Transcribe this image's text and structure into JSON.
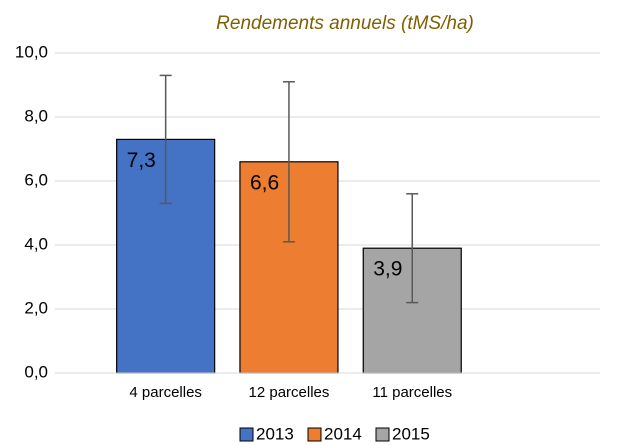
{
  "chart_data": {
    "type": "bar",
    "title": "Rendements annuels (tMS/ha)",
    "categories": [
      "4 parcelles",
      "12 parcelles",
      "11 parcelles"
    ],
    "series": [
      {
        "name": "2013",
        "color": "#4472c4",
        "values": [
          7.3,
          null,
          null
        ],
        "errors": [
          2.0,
          null,
          null
        ],
        "value_labels": [
          "7,3",
          null,
          null
        ]
      },
      {
        "name": "2014",
        "color": "#ed7d31",
        "values": [
          null,
          6.6,
          null
        ],
        "errors": [
          null,
          2.5,
          null
        ],
        "value_labels": [
          null,
          "6,6",
          null
        ]
      },
      {
        "name": "2015",
        "color": "#a5a5a5",
        "values": [
          null,
          null,
          3.9
        ],
        "errors": [
          null,
          null,
          1.7
        ],
        "value_labels": [
          null,
          null,
          "3,9"
        ]
      }
    ],
    "ylim": [
      0,
      10
    ],
    "yticks": [
      {
        "value": 0,
        "label": "0,0"
      },
      {
        "value": 2,
        "label": "2,0"
      },
      {
        "value": 4,
        "label": "4,0"
      },
      {
        "value": 6,
        "label": "6,0"
      },
      {
        "value": 8,
        "label": "8,0"
      },
      {
        "value": 10,
        "label": "10,0"
      }
    ],
    "grid": true,
    "legend": "bottom"
  }
}
